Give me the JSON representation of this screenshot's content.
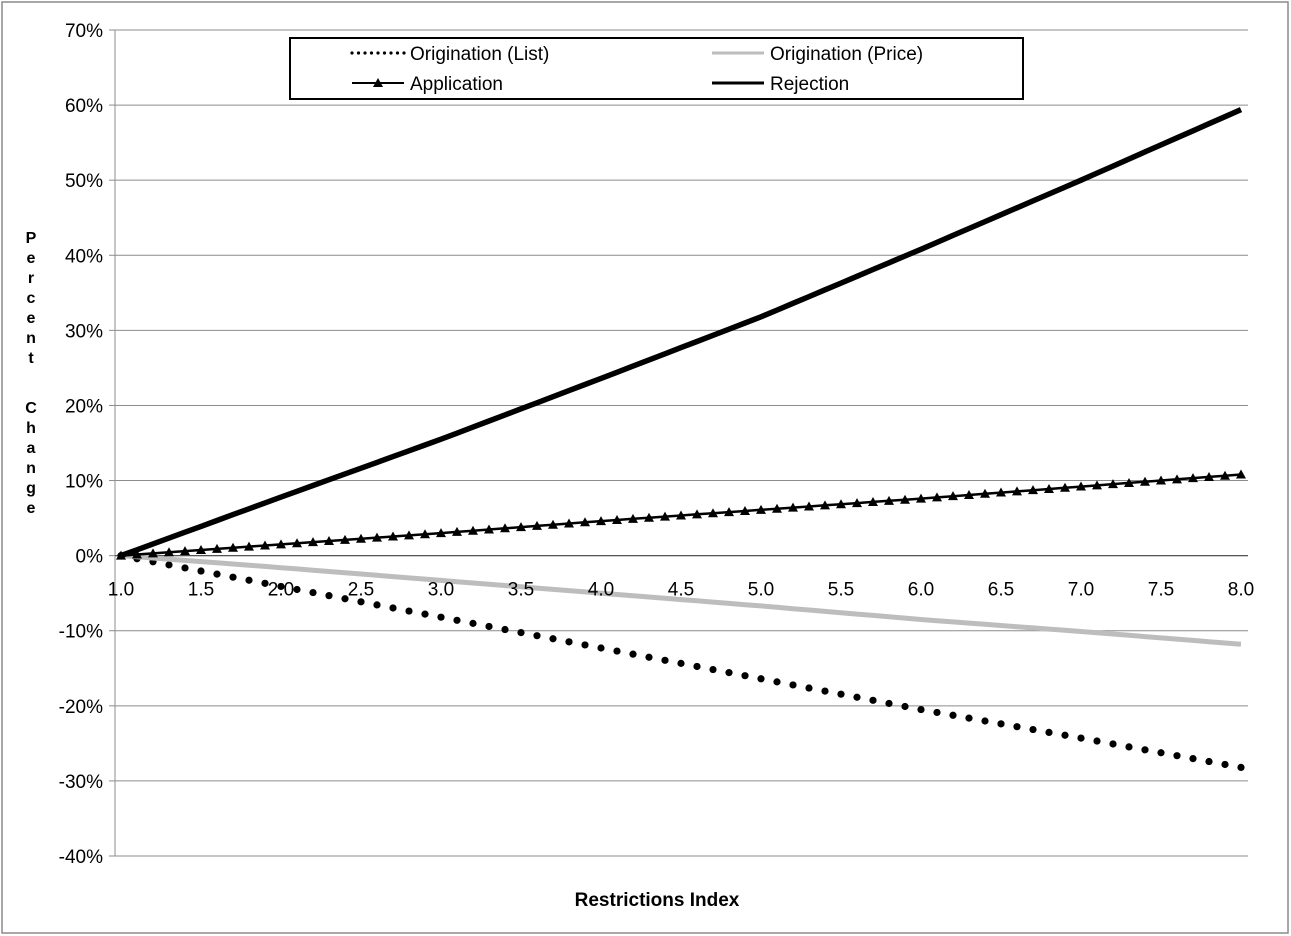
{
  "chart_data": {
    "type": "line",
    "xlabel": "Restrictions Index",
    "ylabel": "Percent Change",
    "xlim": [
      1.0,
      8.0
    ],
    "ylim": [
      -40,
      70
    ],
    "x_ticks": [
      1.0,
      1.5,
      2.0,
      2.5,
      3.0,
      3.5,
      4.0,
      4.5,
      5.0,
      5.5,
      6.0,
      6.5,
      7.0,
      7.5,
      8.0
    ],
    "x_tick_labels": [
      "1.0",
      "1.5",
      "2.0",
      "2.5",
      "3.0",
      "3.5",
      "4.0",
      "4.5",
      "5.0",
      "5.5",
      "6.0",
      "6.5",
      "7.0",
      "7.5",
      "8.0"
    ],
    "y_ticks": [
      70,
      60,
      50,
      40,
      30,
      20,
      10,
      0,
      -10,
      -20,
      -30,
      -40
    ],
    "y_tick_labels": [
      "70%",
      "60%",
      "50%",
      "40%",
      "30%",
      "20%",
      "10%",
      "0%",
      "-10%",
      "-20%",
      "-30%",
      "-40%"
    ],
    "grid": "horizontal",
    "legend_position": "top-center",
    "x": [
      1.0,
      2.0,
      3.0,
      4.0,
      5.0,
      6.0,
      7.0,
      8.0
    ],
    "series": [
      {
        "name": "Origination (List)",
        "style": "dotted",
        "color": "#000000",
        "values": [
          0,
          -4.1,
          -8.2,
          -12.3,
          -16.4,
          -20.5,
          -24.3,
          -28.2
        ]
      },
      {
        "name": "Origination (Price)",
        "style": "solid",
        "color": "#bdbdbd",
        "values": [
          0,
          -1.6,
          -3.3,
          -5.0,
          -6.7,
          -8.5,
          -10.1,
          -11.8
        ]
      },
      {
        "name": "Application",
        "style": "triangle-markers",
        "color": "#000000",
        "values": [
          0,
          1.5,
          3.0,
          4.6,
          6.1,
          7.6,
          9.2,
          10.8
        ]
      },
      {
        "name": "Rejection",
        "style": "solid-thick",
        "color": "#000000",
        "values": [
          0,
          7.8,
          15.5,
          23.6,
          31.8,
          40.8,
          50.0,
          59.4
        ]
      }
    ],
    "marker_step": 0.1
  }
}
